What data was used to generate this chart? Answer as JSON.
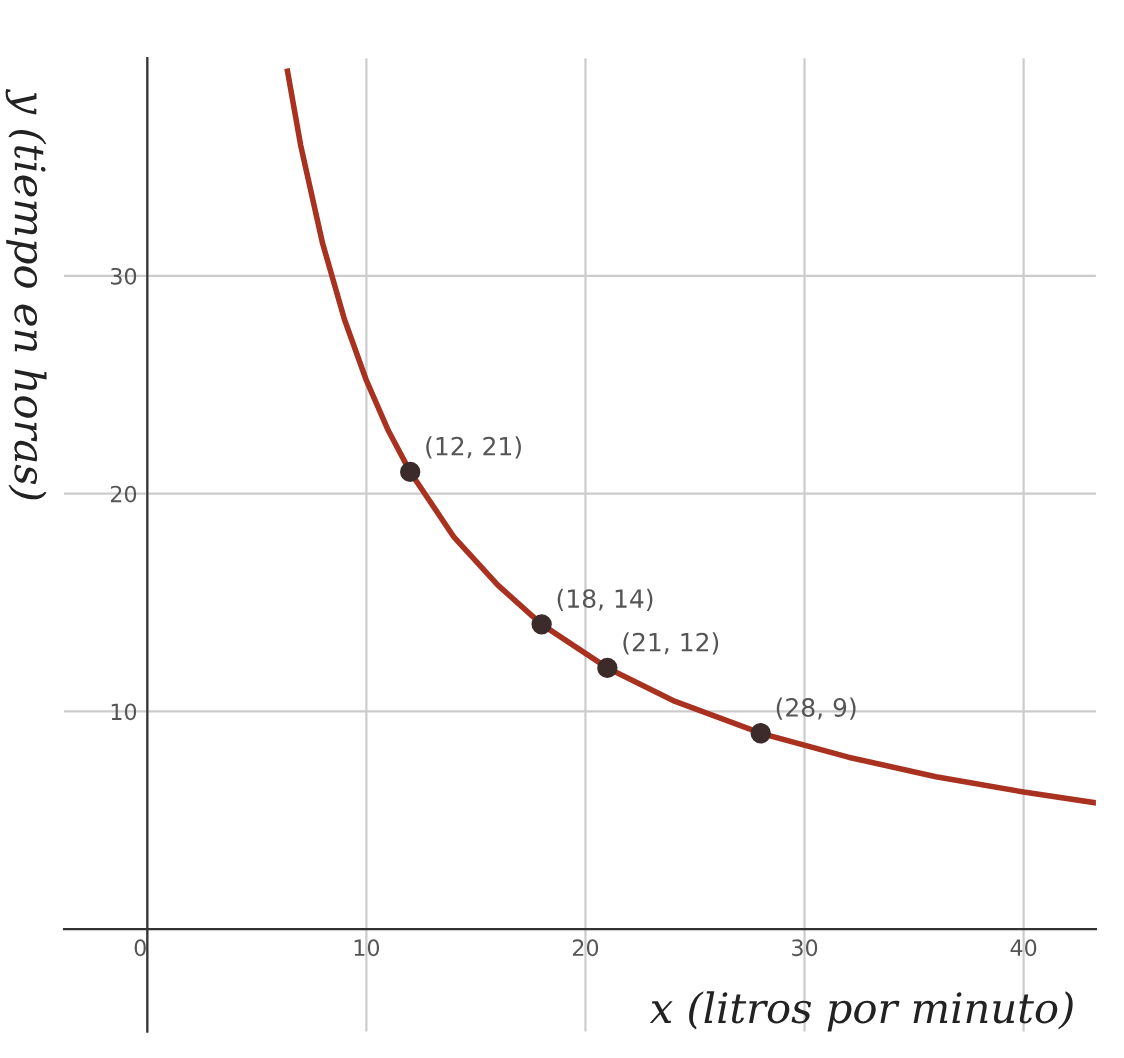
{
  "chart_data": {
    "type": "line",
    "xlabel": "x (litros por minuto)",
    "ylabel": "y (tiempo en horas)",
    "xlim": [
      -3.8,
      43.3
    ],
    "ylim": [
      -4.7,
      40
    ],
    "xticks": [
      0,
      10,
      20,
      30,
      40
    ],
    "yticks": [
      10,
      20,
      30
    ],
    "grid": true,
    "series": [
      {
        "color": "#a8321f",
        "x": [
          6.4,
          7,
          8,
          9,
          10,
          11,
          12,
          14,
          16,
          18,
          21,
          24,
          28,
          32,
          36,
          40,
          43.3
        ],
        "values": [
          39.4,
          36,
          31.5,
          28,
          25.2,
          22.9,
          21,
          18,
          15.8,
          14,
          12,
          10.5,
          9,
          7.9,
          7,
          6.3,
          5.8
        ]
      },
      {
        "type": "scatter",
        "color": "#3b2b2b",
        "marker": "circle",
        "x": [
          12,
          18,
          21,
          28
        ],
        "values": [
          21,
          14,
          12,
          9
        ]
      }
    ],
    "annotations": [
      {
        "text": "(12, 21)",
        "x": 12,
        "y": 21
      },
      {
        "text": "(18, 14)",
        "x": 18,
        "y": 14
      },
      {
        "text": "(21, 12)",
        "x": 21,
        "y": 12
      },
      {
        "text": "(28, 9)",
        "x": 28,
        "y": 9
      }
    ]
  }
}
